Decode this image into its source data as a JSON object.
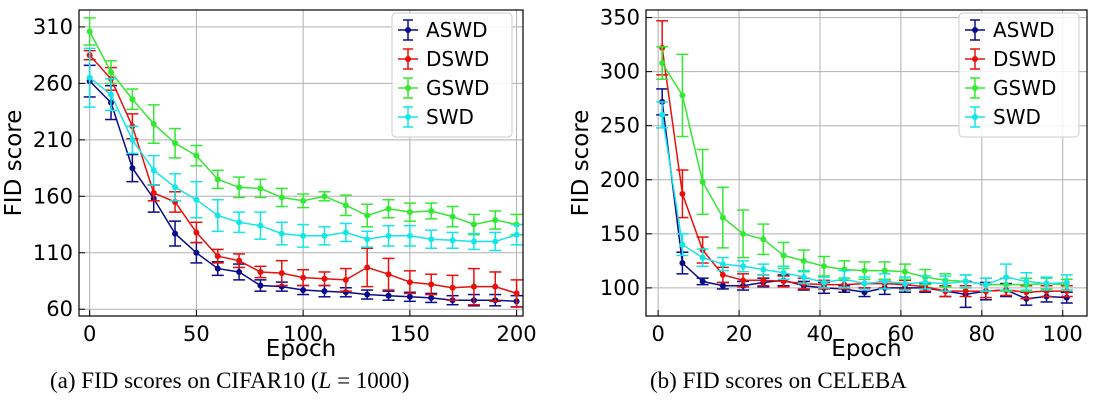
{
  "captions": {
    "a_before": "(a) FID scores on CIFAR10 (",
    "a_math_var": "L",
    "a_math_rest": " = 1000",
    "a_after": ")",
    "b": "(b) FID scores on CELEBA"
  },
  "chart_data": [
    {
      "type": "line",
      "xlabel": "Epoch",
      "ylabel": "FID score",
      "xlim": [
        -5,
        203
      ],
      "ylim": [
        54,
        325
      ],
      "xticks": [
        0,
        50,
        100,
        150,
        200
      ],
      "yticks": [
        60,
        110,
        160,
        210,
        260,
        310
      ],
      "grid": true,
      "legend_position": "top-right",
      "error_bars": true,
      "series": [
        {
          "name": "ASWD",
          "color": "#0a0a8c",
          "x": [
            0,
            10,
            20,
            30,
            40,
            50,
            60,
            70,
            80,
            90,
            100,
            110,
            120,
            130,
            140,
            150,
            160,
            170,
            180,
            190,
            200
          ],
          "y": [
            262,
            243,
            185,
            158,
            127,
            110,
            96,
            93,
            81,
            80,
            77,
            76,
            75,
            73,
            72,
            71,
            70,
            68,
            68,
            68,
            67
          ],
          "err": [
            14,
            15,
            12,
            12,
            11,
            9,
            6,
            7,
            5,
            4,
            4,
            5,
            4,
            4,
            4,
            4,
            4,
            4,
            5,
            5,
            5
          ]
        },
        {
          "name": "DSWD",
          "color": "#e8100a",
          "x": [
            0,
            10,
            20,
            30,
            40,
            50,
            60,
            70,
            80,
            90,
            100,
            110,
            120,
            130,
            140,
            150,
            160,
            170,
            180,
            190,
            200
          ],
          "y": [
            285,
            264,
            222,
            163,
            155,
            128,
            107,
            103,
            93,
            92,
            88,
            87,
            86,
            97,
            91,
            84,
            82,
            79,
            80,
            80,
            74
          ],
          "err": [
            4,
            10,
            11,
            7,
            9,
            9,
            6,
            6,
            5,
            11,
            7,
            6,
            10,
            17,
            14,
            10,
            9,
            11,
            16,
            13,
            12
          ]
        },
        {
          "name": "GSWD",
          "color": "#33e833",
          "x": [
            0,
            10,
            20,
            30,
            40,
            50,
            60,
            70,
            80,
            90,
            100,
            110,
            120,
            130,
            140,
            150,
            160,
            170,
            180,
            190,
            200
          ],
          "y": [
            306,
            270,
            246,
            224,
            207,
            196,
            175,
            168,
            167,
            159,
            156,
            160,
            152,
            143,
            149,
            146,
            147,
            142,
            135,
            139,
            135
          ],
          "err": [
            12,
            10,
            9,
            17,
            13,
            9,
            8,
            9,
            8,
            8,
            6,
            4,
            9,
            10,
            8,
            8,
            7,
            9,
            9,
            8,
            9
          ]
        },
        {
          "name": "SWD",
          "color": "#14e6e6",
          "x": [
            0,
            10,
            20,
            30,
            40,
            50,
            60,
            70,
            80,
            90,
            100,
            110,
            120,
            130,
            140,
            150,
            160,
            170,
            180,
            190,
            200
          ],
          "y": [
            265,
            250,
            210,
            183,
            168,
            157,
            143,
            137,
            134,
            127,
            125,
            125,
            128,
            122,
            125,
            125,
            122,
            121,
            120,
            120,
            126
          ],
          "err": [
            26,
            14,
            12,
            13,
            12,
            16,
            14,
            9,
            12,
            10,
            10,
            8,
            8,
            7,
            9,
            9,
            8,
            7,
            7,
            8,
            9
          ]
        }
      ]
    },
    {
      "type": "line",
      "xlabel": "Epoch",
      "ylabel": "FID score",
      "xlim": [
        -3,
        106
      ],
      "ylim": [
        74,
        357
      ],
      "xticks": [
        0,
        20,
        40,
        60,
        80,
        100
      ],
      "yticks": [
        100,
        150,
        200,
        250,
        300,
        350
      ],
      "grid": true,
      "legend_position": "top-right",
      "error_bars": true,
      "series": [
        {
          "name": "ASWD",
          "color": "#0a0a8c",
          "x": [
            1,
            6,
            11,
            16,
            21,
            26,
            31,
            36,
            41,
            46,
            51,
            56,
            61,
            66,
            71,
            76,
            81,
            86,
            91,
            96,
            101
          ],
          "y": [
            272,
            123,
            106,
            102,
            102,
            105,
            107,
            102,
            100,
            99,
            96,
            100,
            100,
            100,
            97,
            94,
            97,
            98,
            90,
            92,
            91
          ],
          "err": [
            12,
            10,
            3,
            3,
            4,
            4,
            5,
            4,
            5,
            3,
            4,
            6,
            4,
            4,
            5,
            12,
            8,
            6,
            6,
            5,
            5
          ]
        },
        {
          "name": "DSWD",
          "color": "#e8100a",
          "x": [
            1,
            6,
            11,
            16,
            21,
            26,
            31,
            36,
            41,
            46,
            51,
            56,
            61,
            66,
            71,
            76,
            81,
            86,
            91,
            96,
            101
          ],
          "y": [
            322,
            187,
            135,
            112,
            107,
            107,
            106,
            104,
            103,
            103,
            104,
            104,
            103,
            101,
            97,
            97,
            97,
            98,
            96,
            97,
            97
          ],
          "err": [
            25,
            22,
            12,
            7,
            6,
            5,
            5,
            5,
            4,
            4,
            4,
            4,
            4,
            4,
            5,
            5,
            6,
            5,
            6,
            5,
            5
          ]
        },
        {
          "name": "GSWD",
          "color": "#33e833",
          "x": [
            1,
            6,
            11,
            16,
            21,
            26,
            31,
            36,
            41,
            46,
            51,
            56,
            61,
            66,
            71,
            76,
            81,
            86,
            91,
            96,
            101
          ],
          "y": [
            308,
            278,
            198,
            165,
            150,
            145,
            130,
            125,
            120,
            117,
            116,
            116,
            115,
            110,
            107,
            106,
            103,
            103,
            103,
            104,
            103
          ],
          "err": [
            15,
            38,
            30,
            28,
            22,
            14,
            12,
            10,
            9,
            8,
            8,
            8,
            7,
            7,
            6,
            6,
            6,
            6,
            6,
            5,
            5
          ]
        },
        {
          "name": "SWD",
          "color": "#14e6e6",
          "x": [
            1,
            6,
            11,
            16,
            21,
            26,
            31,
            36,
            41,
            46,
            51,
            56,
            61,
            66,
            71,
            76,
            81,
            86,
            91,
            96,
            101
          ],
          "y": [
            260,
            140,
            128,
            122,
            120,
            117,
            114,
            110,
            105,
            108,
            104,
            106,
            104,
            105,
            104,
            106,
            103,
            110,
            106,
            104,
            105
          ],
          "err": [
            12,
            10,
            8,
            6,
            5,
            5,
            6,
            6,
            5,
            8,
            6,
            7,
            6,
            6,
            7,
            6,
            6,
            12,
            8,
            6,
            7
          ]
        }
      ]
    }
  ]
}
